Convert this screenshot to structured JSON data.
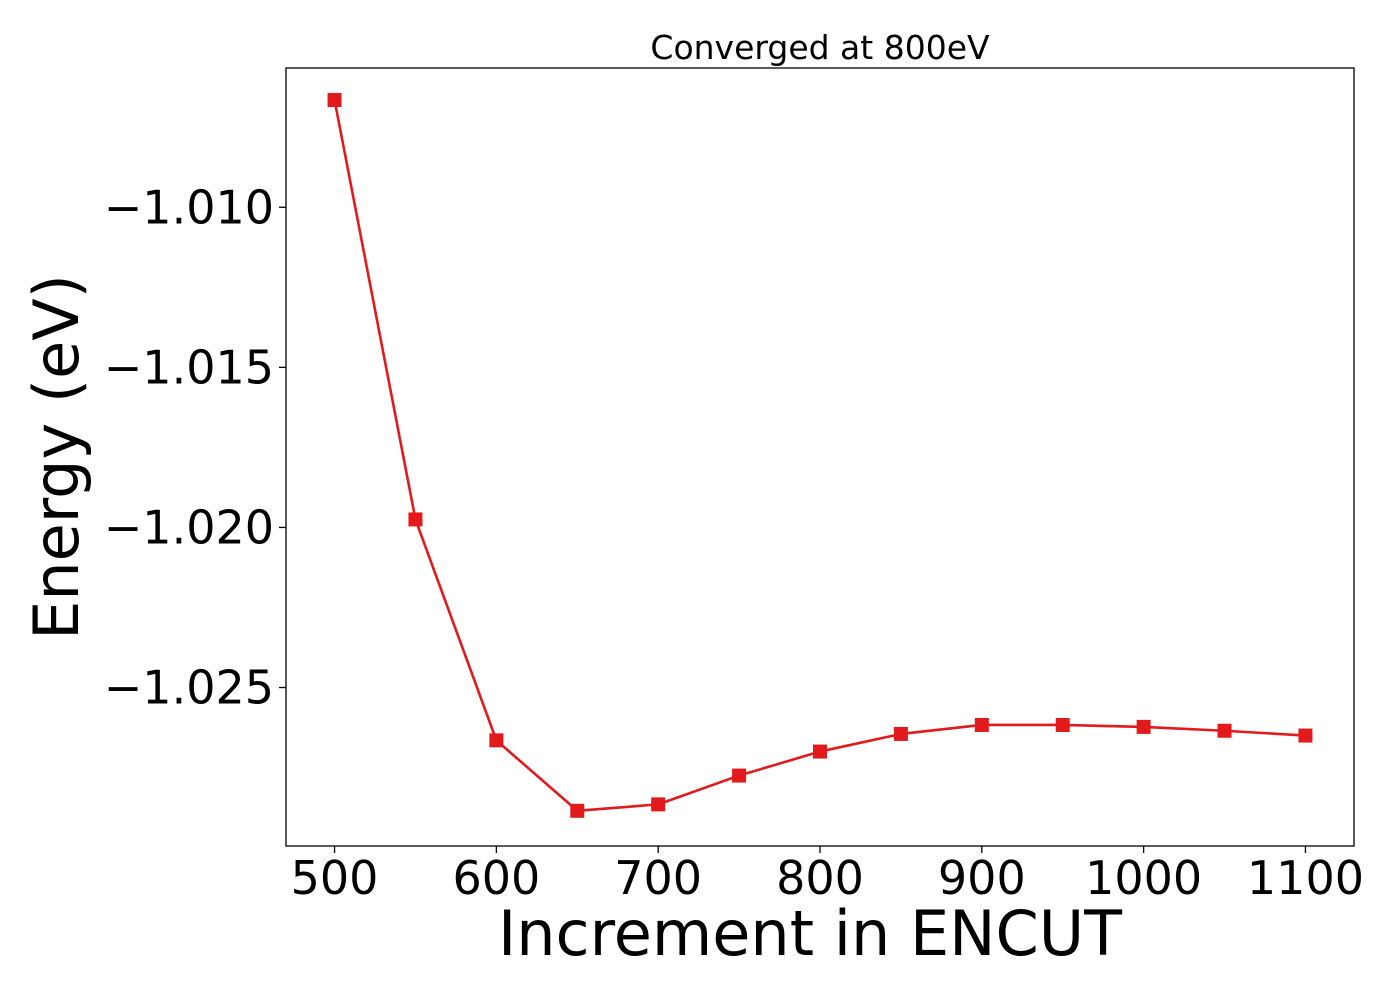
{
  "chart_data": {
    "type": "line",
    "title": "Converged at 800eV",
    "xlabel": "Increment in ENCUT",
    "ylabel": "Energy (eV)",
    "xlim": [
      470,
      1130
    ],
    "ylim": [
      -1.02995,
      -1.00565
    ],
    "xticks": [
      500,
      600,
      700,
      800,
      900,
      1000,
      1100
    ],
    "xtick_labels": [
      "500",
      "600",
      "700",
      "800",
      "900",
      "1000",
      "1100"
    ],
    "yticks": [
      -1.01,
      -1.015,
      -1.02,
      -1.025
    ],
    "ytick_labels": [
      "−1.010",
      "−1.015",
      "−1.020",
      "−1.025"
    ],
    "grid": false,
    "series": [
      {
        "color": "#e31a1c",
        "marker": "square",
        "x": [
          500,
          550,
          600,
          650,
          700,
          750,
          800,
          850,
          900,
          950,
          1000,
          1050,
          1100
        ],
        "y": [
          -1.00665,
          -1.01975,
          -1.02665,
          -1.02885,
          -1.02865,
          -1.02775,
          -1.027,
          -1.02645,
          -1.02617,
          -1.02617,
          -1.02623,
          -1.02635,
          -1.0265
        ]
      }
    ]
  }
}
